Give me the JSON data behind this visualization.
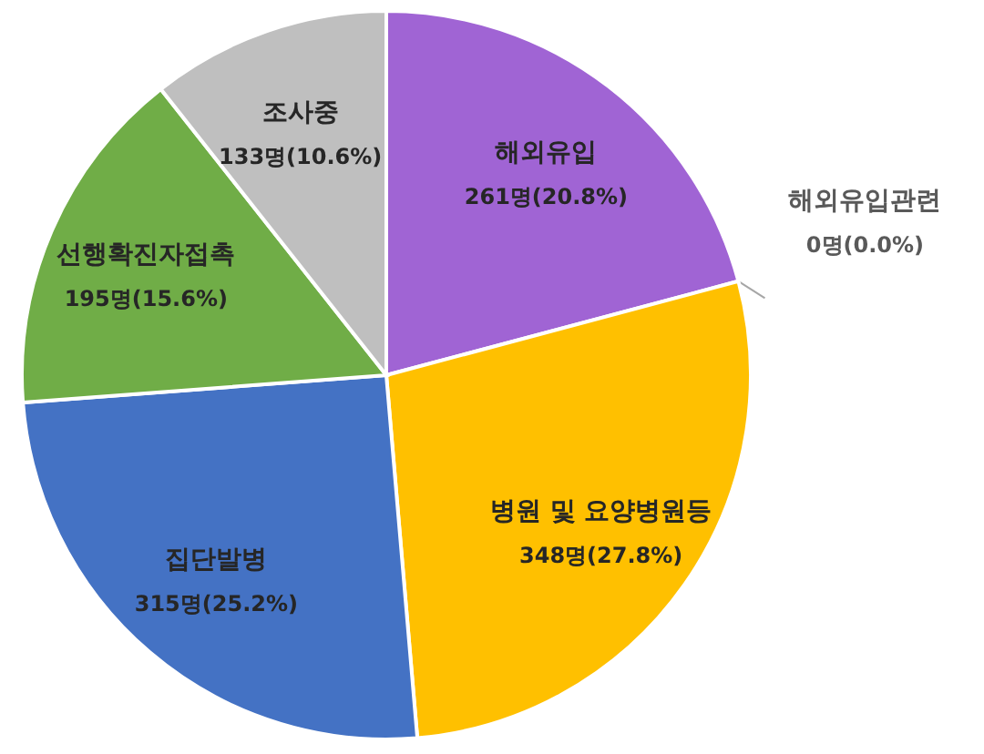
{
  "chart_data": {
    "type": "pie",
    "categories": [
      "해외유입",
      "해외유입관련",
      "병원 및 요양병원등",
      "집단발병",
      "선행확진자접촉",
      "조사중"
    ],
    "values": [
      261,
      0,
      348,
      315,
      195,
      133
    ],
    "value_labels": [
      "261명(20.8%)",
      "0명(0.0%)",
      "348명(27.8%)",
      "315명(25.2%)",
      "195명(15.6%)",
      "133명(10.6%)"
    ],
    "colors": [
      "#a064d4",
      null,
      "#ffc000",
      "#4472c4",
      "#70ad47",
      "#bfbfbf"
    ]
  }
}
